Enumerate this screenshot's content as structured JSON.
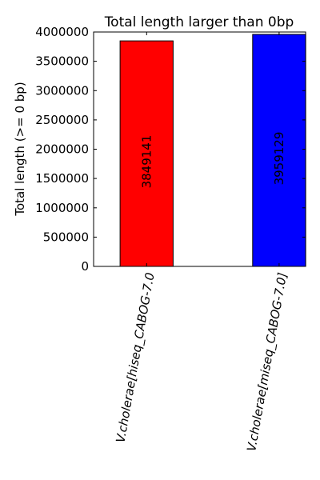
{
  "chart_data": {
    "type": "bar",
    "title": "Total length larger than 0bp",
    "xlabel": "",
    "ylabel": "Total length (>= 0 bp)",
    "ylim": [
      0,
      4000000
    ],
    "yticks": [
      0,
      500000,
      1000000,
      1500000,
      2000000,
      2500000,
      3000000,
      3500000,
      4000000
    ],
    "ytick_labels": [
      "0",
      "500000",
      "1000000",
      "1500000",
      "2000000",
      "2500000",
      "3000000",
      "3500000",
      "4000000"
    ],
    "categories": [
      "V.cholerae[hiseq_CABOG-7.0",
      "V.cholerae[miseq_CABOG-7.0]"
    ],
    "values": [
      3849141,
      3959129
    ],
    "bar_labels": [
      "3849141",
      "3959129"
    ],
    "colors": [
      "#ff0000",
      "#0000ff"
    ],
    "grid": false,
    "legend": "none"
  }
}
